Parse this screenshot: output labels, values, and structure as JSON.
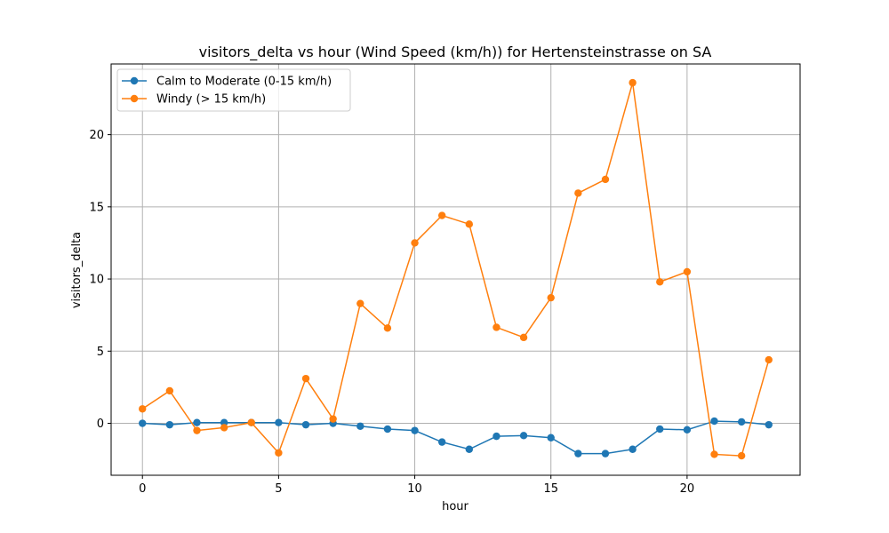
{
  "chart_data": {
    "type": "line",
    "title": "visitors_delta vs hour (Wind Speed (km/h)) for Hertensteinstrasse on SA",
    "xlabel": "hour",
    "ylabel": "visitors_delta",
    "xlim": [
      -1.15,
      24.15
    ],
    "ylim": [
      -3.6,
      24.9
    ],
    "xticks": [
      0,
      5,
      10,
      15,
      20
    ],
    "yticks": [
      0,
      5,
      10,
      15,
      20
    ],
    "grid": true,
    "legend_position": "top-left",
    "x": [
      0,
      1,
      2,
      3,
      4,
      5,
      6,
      7,
      8,
      9,
      10,
      11,
      12,
      13,
      14,
      15,
      16,
      17,
      18,
      19,
      20,
      21,
      22,
      23
    ],
    "series": [
      {
        "name": "Calm to Moderate (0-15 km/h)",
        "color": "#1f77b4",
        "values": [
          0.0,
          -0.1,
          0.05,
          0.05,
          0.05,
          0.05,
          -0.1,
          0.0,
          -0.2,
          -0.4,
          -0.5,
          -1.3,
          -1.8,
          -0.9,
          -0.85,
          -1.0,
          -2.1,
          -2.1,
          -1.8,
          -0.4,
          -0.45,
          0.15,
          0.1,
          -0.1
        ]
      },
      {
        "name": "Windy (> 15 km/h)",
        "color": "#ff7f0e",
        "values": [
          1.0,
          2.25,
          -0.5,
          -0.3,
          0.05,
          -2.05,
          3.1,
          0.3,
          8.3,
          6.6,
          12.5,
          14.4,
          13.8,
          6.65,
          5.95,
          8.7,
          15.95,
          16.9,
          23.6,
          9.8,
          10.5,
          -2.15,
          -2.25,
          4.4
        ]
      }
    ]
  }
}
